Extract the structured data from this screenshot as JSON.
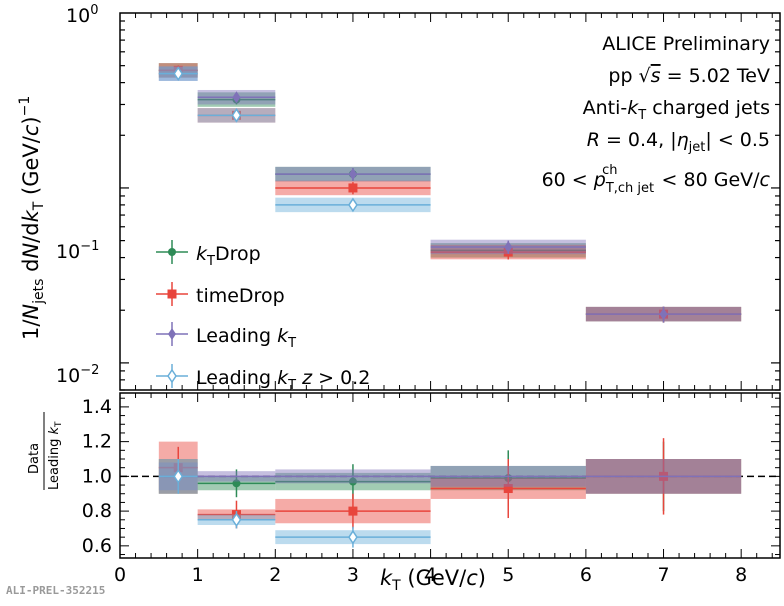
{
  "chart_data": [
    {
      "type": "scatter",
      "panel": "top",
      "yscale": "log",
      "xlim": [
        0,
        8.5
      ],
      "ylim": [
        0.007,
        1.0
      ],
      "xlabel": "k_T (GeV/c)",
      "ylabel": "1/N_jets dN/dk_T (GeV/c)^-1",
      "y_tick_labels": [
        "10^0",
        "10^-1",
        "10^-2"
      ],
      "y_tick_values": [
        1.0,
        0.1,
        0.01
      ],
      "annotation_lines": [
        "ALICE Preliminary",
        "pp √s = 5.02 TeV",
        "Anti-k_T charged jets",
        "R = 0.4, |η_jet| < 0.5",
        "60 < p_T,ch jet^ch < 80 GeV/c"
      ],
      "legend_position": "lower-left",
      "series": [
        {
          "name": "k_T Drop",
          "color": "#2e8b57",
          "marker": "dot",
          "bins": [
            [
              0.5,
              1
            ],
            [
              1,
              2
            ],
            [
              2,
              4
            ],
            [
              4,
              6
            ],
            [
              6,
              8
            ]
          ],
          "x": [
            0.75,
            1.5,
            3,
            5,
            7
          ],
          "y": [
            0.47,
            0.32,
            0.12,
            0.044,
            0.019
          ],
          "err": [
            0.03,
            0.02,
            0.01,
            0.004,
            0.002
          ]
        },
        {
          "name": "timeDrop",
          "color": "#e8453c",
          "marker": "square",
          "bins": [
            [
              0.5,
              1
            ],
            [
              1,
              2
            ],
            [
              2,
              4
            ],
            [
              4,
              6
            ],
            [
              6,
              8
            ]
          ],
          "x": [
            0.75,
            1.5,
            3,
            5,
            7
          ],
          "y": [
            0.47,
            0.26,
            0.1,
            0.043,
            0.019
          ],
          "err": [
            0.03,
            0.02,
            0.008,
            0.004,
            0.002
          ]
        },
        {
          "name": "Leading k_T",
          "color": "#7f72b8",
          "marker": "diamond",
          "bins": [
            [
              0.5,
              1
            ],
            [
              1,
              2
            ],
            [
              2,
              4
            ],
            [
              4,
              6
            ],
            [
              6,
              8
            ]
          ],
          "x": [
            0.75,
            1.5,
            3,
            5,
            7
          ],
          "y": [
            0.45,
            0.33,
            0.12,
            0.046,
            0.019
          ],
          "err": [
            0.03,
            0.02,
            0.01,
            0.004,
            0.002
          ]
        },
        {
          "name": "Leading k_T z > 0.2",
          "color": "#6aafd9",
          "marker": "open-diamond",
          "bins": [
            [
              0.5,
              1
            ],
            [
              1,
              2
            ],
            [
              2,
              4
            ]
          ],
          "x": [
            0.75,
            1.5,
            3
          ],
          "y": [
            0.45,
            0.26,
            0.08
          ],
          "err": [
            0.03,
            0.02,
            0.006
          ]
        }
      ]
    },
    {
      "type": "scatter",
      "panel": "ratio",
      "xlim": [
        0,
        8.5
      ],
      "ylim": [
        0.53,
        1.48
      ],
      "ylabel": "Data / Leading k_T",
      "y_ticks": [
        0.6,
        0.8,
        1.0,
        1.2,
        1.4
      ],
      "y_tick_labels": [
        "0.6",
        "0.8",
        "1.0",
        "1.2",
        "1.4"
      ],
      "x_ticks": [
        0,
        1,
        2,
        3,
        4,
        5,
        6,
        7,
        8
      ],
      "x_tick_labels": [
        "0",
        "1",
        "2",
        "3",
        "4",
        "5",
        "6",
        "7",
        "8"
      ],
      "reference_line": 1.0,
      "series": [
        {
          "name": "k_T Drop",
          "color": "#2e8b57",
          "marker": "dot",
          "bins": [
            [
              0.5,
              1
            ],
            [
              1,
              2
            ],
            [
              2,
              4
            ],
            [
              4,
              6
            ],
            [
              6,
              8
            ]
          ],
          "x": [
            0.75,
            1.5,
            3,
            5,
            7
          ],
          "y": [
            1.0,
            0.96,
            0.97,
            0.99,
            1.0
          ],
          "err": [
            0.08,
            0.08,
            0.1,
            0.16,
            0.2
          ],
          "band": [
            0.1,
            0.04,
            0.05,
            0.07,
            0.1
          ]
        },
        {
          "name": "timeDrop",
          "color": "#e8453c",
          "marker": "square",
          "bins": [
            [
              0.5,
              1
            ],
            [
              1,
              2
            ],
            [
              2,
              4
            ],
            [
              4,
              6
            ],
            [
              6,
              8
            ]
          ],
          "x": [
            0.75,
            1.5,
            3,
            5,
            7
          ],
          "y": [
            1.05,
            0.78,
            0.8,
            0.93,
            1.0
          ],
          "err": [
            0.12,
            0.08,
            0.1,
            0.17,
            0.22
          ],
          "band": [
            0.15,
            0.03,
            0.07,
            0.06,
            0.1
          ]
        },
        {
          "name": "Leading k_T",
          "color": "#7f72b8",
          "marker": "none",
          "bins": [
            [
              0.5,
              1
            ],
            [
              1,
              2
            ],
            [
              2,
              4
            ],
            [
              4,
              6
            ],
            [
              6,
              8
            ]
          ],
          "x": [
            0.75,
            1.5,
            3,
            5,
            7
          ],
          "y": [
            1.0,
            1.0,
            1.0,
            1.0,
            1.0
          ],
          "err": [
            0,
            0,
            0,
            0,
            0
          ],
          "band": [
            0.08,
            0.03,
            0.04,
            0.06,
            0.1
          ]
        },
        {
          "name": "Leading k_T z > 0.2",
          "color": "#6aafd9",
          "marker": "open-diamond",
          "bins": [
            [
              0.5,
              1
            ],
            [
              1,
              2
            ],
            [
              2,
              4
            ]
          ],
          "x": [
            0.75,
            1.5,
            3
          ],
          "y": [
            1.0,
            0.75,
            0.65
          ],
          "err": [
            0.1,
            0.05,
            0.06
          ],
          "band": [
            0.1,
            0.03,
            0.04
          ]
        }
      ]
    }
  ],
  "footer": "ALI-PREL-352215"
}
